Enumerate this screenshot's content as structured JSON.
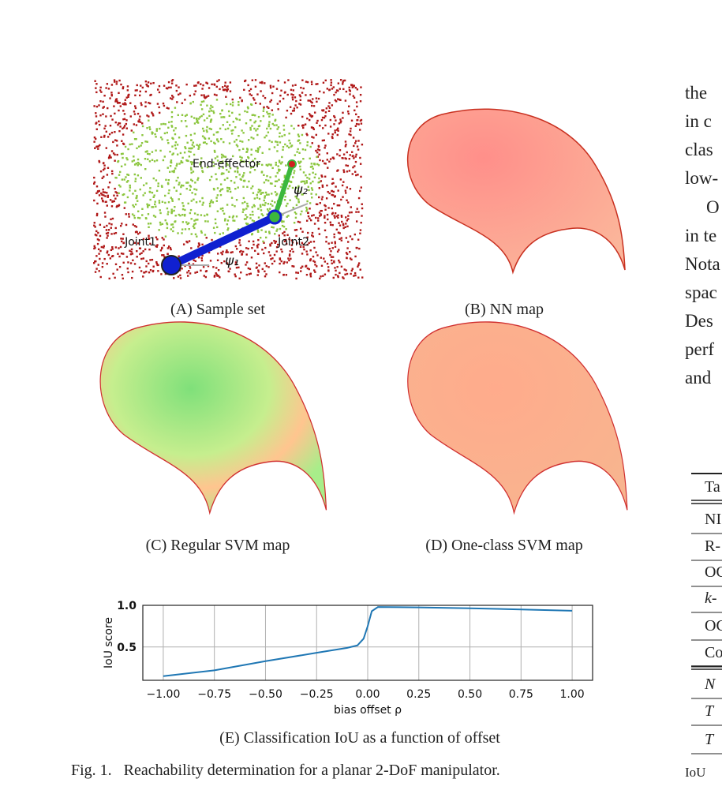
{
  "panel_a": {
    "caption": "(A) Sample set",
    "labels": [
      "End-effector",
      "Joint1",
      "Joint2",
      "ψ₁",
      "ψ₂"
    ]
  },
  "panel_b": {
    "caption": "(B) NN map"
  },
  "panel_c": {
    "caption": "(C) Regular SVM map"
  },
  "panel_d": {
    "caption": "(D) One-class SVM map"
  },
  "panel_e": {
    "caption": "(E) Classification IoU as a function of offset",
    "chart_data": {
      "type": "line",
      "xlabel": "bias offset ρ",
      "ylabel": "IoU score",
      "color": "#1f77b4",
      "grid": true,
      "x": [
        -1.0,
        -0.75,
        -0.5,
        -0.25,
        -0.1,
        -0.05,
        -0.02,
        0.0,
        0.02,
        0.05,
        0.25,
        0.5,
        0.75,
        1.0
      ],
      "values": [
        0.15,
        0.22,
        0.33,
        0.43,
        0.49,
        0.52,
        0.6,
        0.75,
        0.93,
        0.98,
        0.975,
        0.965,
        0.95,
        0.935
      ],
      "xlim": [
        -1.1,
        1.1
      ],
      "ylim": [
        0.1,
        1.0
      ],
      "xticks": [
        {
          "value": -1,
          "label": "−1.00"
        },
        {
          "value": -0.75,
          "label": "−0.75"
        },
        {
          "value": -0.5,
          "label": "−0.50"
        },
        {
          "value": -0.25,
          "label": "−0.25"
        },
        {
          "value": 0,
          "label": "0.00"
        },
        {
          "value": 0.25,
          "label": "0.25"
        },
        {
          "value": 0.5,
          "label": "0.50"
        },
        {
          "value": 0.75,
          "label": "0.75"
        },
        {
          "value": 1,
          "label": "1.00"
        }
      ],
      "yticks": [
        0.5,
        {
          "value": 1,
          "label": "1.0"
        }
      ]
    }
  },
  "figure_caption": "Fig. 1.   Reachability determination for a planar 2-DoF manipulator.",
  "right_column": {
    "text_lines": [
      "the",
      "in c",
      "clas",
      "low-",
      "O",
      "in te",
      "Nota",
      "spac",
      "Des",
      "perf",
      "and"
    ],
    "table": {
      "title": "Ta",
      "rows": [
        "NI",
        "R-",
        "OC",
        "k-",
        "OC",
        "Co",
        "N",
        "T",
        "T"
      ]
    },
    "caption": "IoU"
  }
}
